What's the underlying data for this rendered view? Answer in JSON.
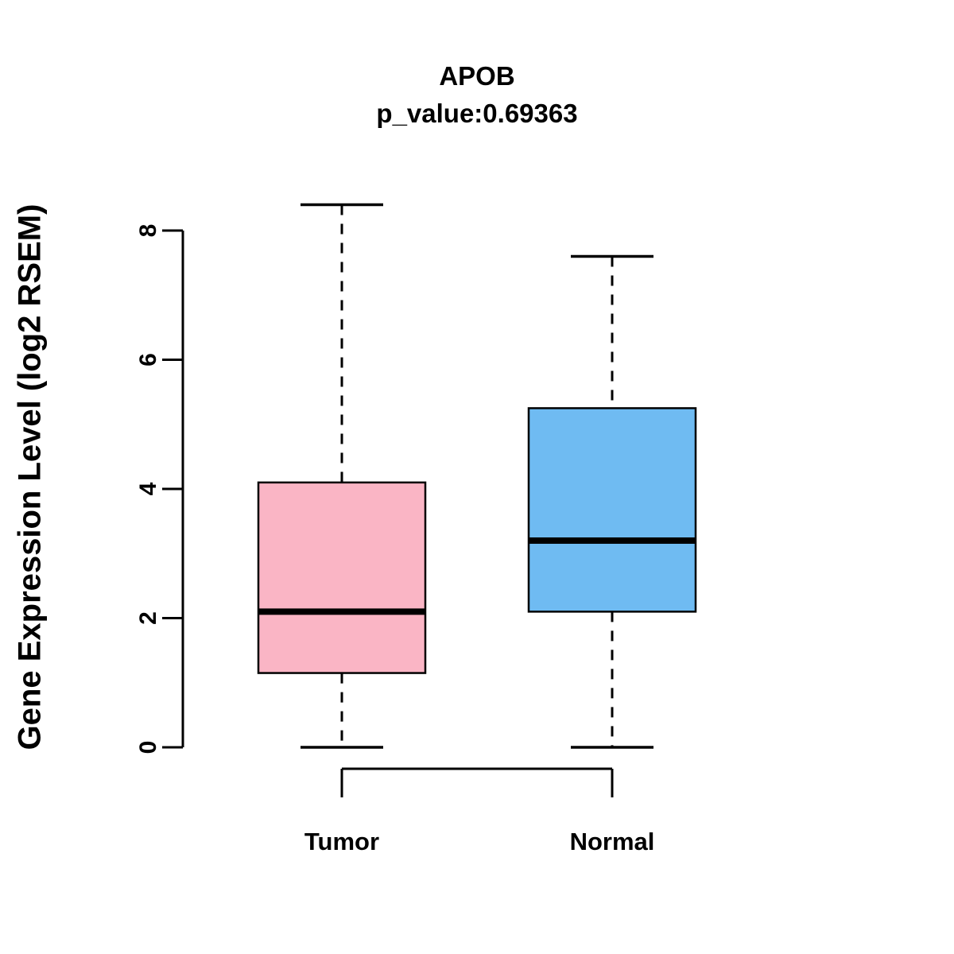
{
  "title": "APOB",
  "subtitle": "p_value:0.69363",
  "chart_data": {
    "type": "boxplot",
    "title": "APOB",
    "subtitle": "p_value:0.69363",
    "xlabel": "",
    "ylabel": "Gene Expression Level (log2 RSEM)",
    "ylim": [
      0,
      8.6
    ],
    "yticks": [
      0,
      2,
      4,
      6,
      8
    ],
    "grid": false,
    "legend": "none",
    "groups": [
      {
        "label": "Tumor",
        "color": "#FAB5C5",
        "min": 0,
        "q1": 1.15,
        "median": 2.1,
        "q3": 4.1,
        "max": 8.4
      },
      {
        "label": "Normal",
        "color": "#6FBBF2",
        "min": 0,
        "q1": 2.1,
        "median": 3.2,
        "q3": 5.25,
        "max": 7.6
      }
    ]
  },
  "colors": {
    "background": "#FFFFFF",
    "box_border": "#000000",
    "median_line": "#000000",
    "axis": "#000000",
    "tumor_fill": "#FAB5C5",
    "normal_fill": "#6FBBF2"
  }
}
